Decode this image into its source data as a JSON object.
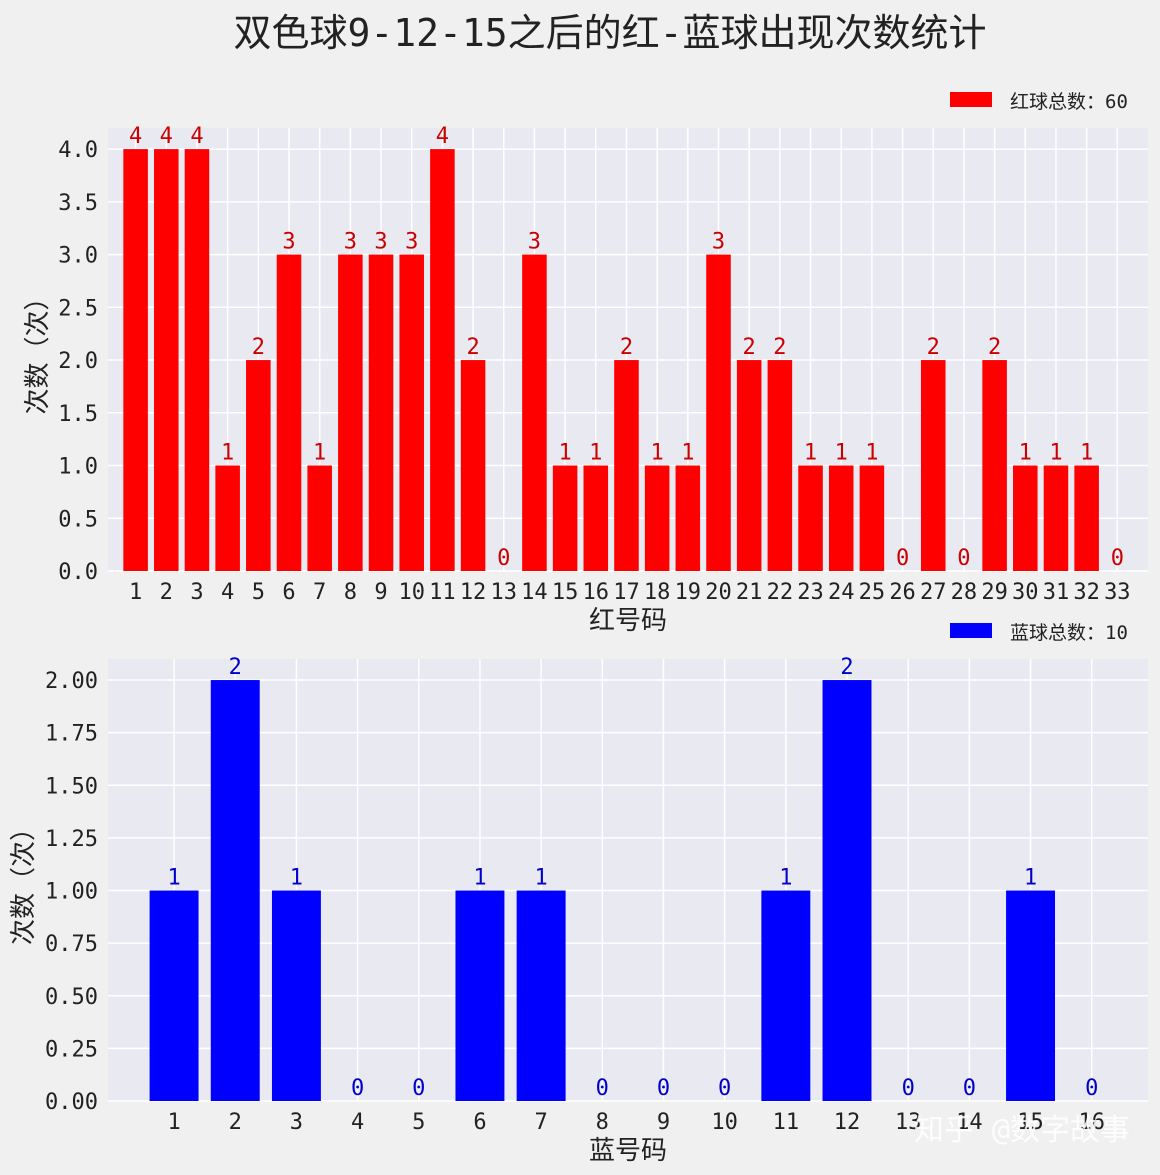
{
  "title": "双色球9-12-15之后的红-蓝球出现次数统计",
  "watermark": "知乎 @数字故事",
  "colors": {
    "background": "#f0f0f0",
    "plot_bg": "#e9e9f1",
    "grid": "#ffffff",
    "red": "#ff0000",
    "red_label": "#cc0000",
    "blue": "#0000ff",
    "blue_label": "#0000cc"
  },
  "chart_data": [
    {
      "type": "bar",
      "categories": [
        "1",
        "2",
        "3",
        "4",
        "5",
        "6",
        "7",
        "8",
        "9",
        "10",
        "11",
        "12",
        "13",
        "14",
        "15",
        "16",
        "17",
        "18",
        "19",
        "20",
        "21",
        "22",
        "23",
        "24",
        "25",
        "26",
        "27",
        "28",
        "29",
        "30",
        "31",
        "32",
        "33"
      ],
      "values": [
        4,
        4,
        4,
        1,
        2,
        3,
        1,
        3,
        3,
        3,
        4,
        2,
        0,
        3,
        1,
        1,
        2,
        1,
        1,
        3,
        2,
        2,
        1,
        1,
        1,
        0,
        2,
        0,
        2,
        1,
        1,
        1,
        0
      ],
      "data_labels": [
        "4",
        "4",
        "4",
        "1",
        "2",
        "3",
        "1",
        "3",
        "3",
        "3",
        "4",
        "2",
        "0",
        "3",
        "1",
        "1",
        "2",
        "1",
        "1",
        "3",
        "2",
        "2",
        "1",
        "1",
        "1",
        "0",
        "2",
        "0",
        "2",
        "1",
        "1",
        "1",
        "0"
      ],
      "series_name": "红球总数：60",
      "xlabel": "红号码",
      "ylabel": "次数（次）",
      "ylim": [
        0,
        4.2
      ],
      "yticks": [
        "0.0",
        "0.5",
        "1.0",
        "1.5",
        "2.0",
        "2.5",
        "3.0",
        "3.5",
        "4.0"
      ],
      "ytick_values": [
        0,
        0.5,
        1,
        1.5,
        2,
        2.5,
        3,
        3.5,
        4
      ],
      "grid": true,
      "legend": "top-right",
      "color": "#ff0000"
    },
    {
      "type": "bar",
      "categories": [
        "1",
        "2",
        "3",
        "4",
        "5",
        "6",
        "7",
        "8",
        "9",
        "10",
        "11",
        "12",
        "13",
        "14",
        "15",
        "16"
      ],
      "values": [
        1,
        2,
        1,
        0,
        0,
        1,
        1,
        0,
        0,
        0,
        1,
        2,
        0,
        0,
        1,
        0
      ],
      "data_labels": [
        "1",
        "2",
        "1",
        "0",
        "0",
        "1",
        "1",
        "0",
        "0",
        "0",
        "1",
        "2",
        "0",
        "0",
        "1",
        "0"
      ],
      "series_name": "蓝球总数：10",
      "xlabel": "蓝号码",
      "ylabel": "次数（次）",
      "ylim": [
        0,
        2.1
      ],
      "yticks": [
        "0.00",
        "0.25",
        "0.50",
        "0.75",
        "1.00",
        "1.25",
        "1.50",
        "1.75",
        "2.00"
      ],
      "ytick_values": [
        0,
        0.25,
        0.5,
        0.75,
        1,
        1.25,
        1.5,
        1.75,
        2
      ],
      "grid": true,
      "legend": "top-right",
      "color": "#0000ff"
    }
  ]
}
